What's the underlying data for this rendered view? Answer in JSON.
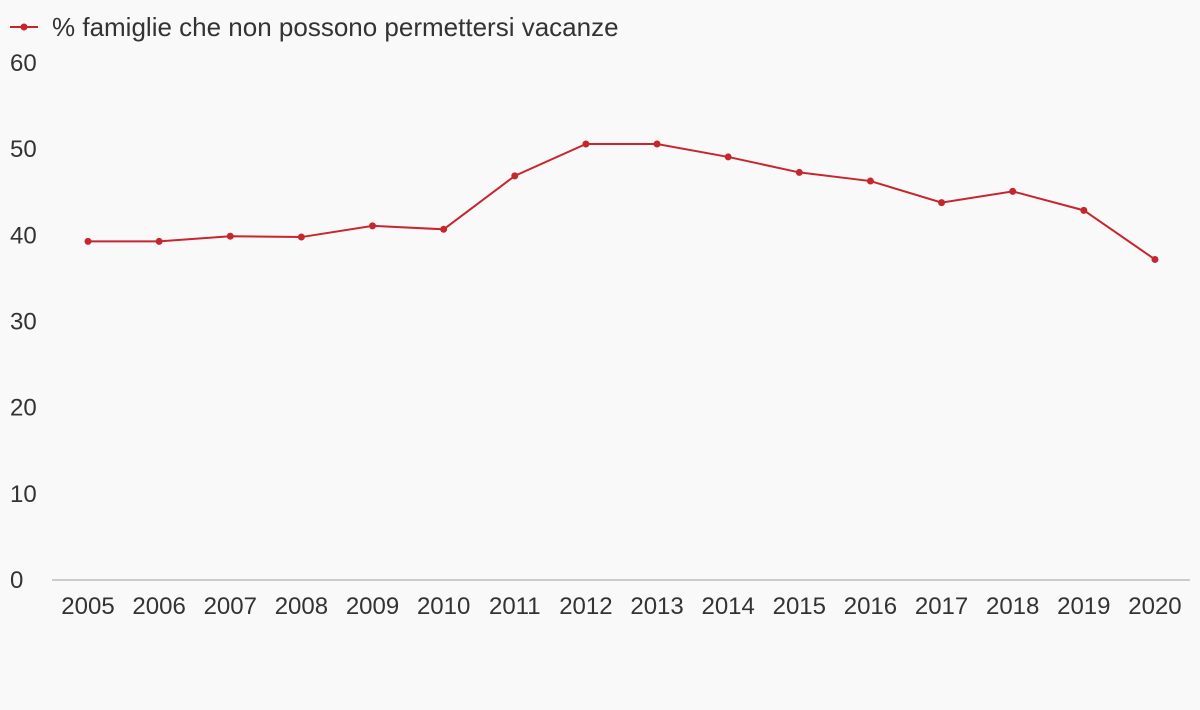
{
  "colors": {
    "background": "#f9f9f9",
    "series": "#c8262e",
    "axis": "#cccccc",
    "text": "#333333"
  },
  "chart_data": {
    "type": "line",
    "title": "",
    "xlabel": "",
    "ylabel": "",
    "legend_position": "top-left",
    "grid": false,
    "ylim": [
      0,
      60
    ],
    "yticks": [
      "0",
      "10",
      "20",
      "30",
      "40",
      "50",
      "60"
    ],
    "categories": [
      "2005",
      "2006",
      "2007",
      "2008",
      "2009",
      "2010",
      "2011",
      "2012",
      "2013",
      "2014",
      "2015",
      "2016",
      "2017",
      "2018",
      "2019",
      "2020"
    ],
    "series": [
      {
        "name": "% famiglie che non possono permettersi vacanze",
        "values": [
          39.3,
          39.3,
          39.9,
          39.8,
          41.1,
          40.7,
          46.9,
          50.6,
          50.6,
          49.1,
          47.3,
          46.3,
          43.8,
          45.1,
          42.9,
          37.2
        ]
      }
    ]
  }
}
